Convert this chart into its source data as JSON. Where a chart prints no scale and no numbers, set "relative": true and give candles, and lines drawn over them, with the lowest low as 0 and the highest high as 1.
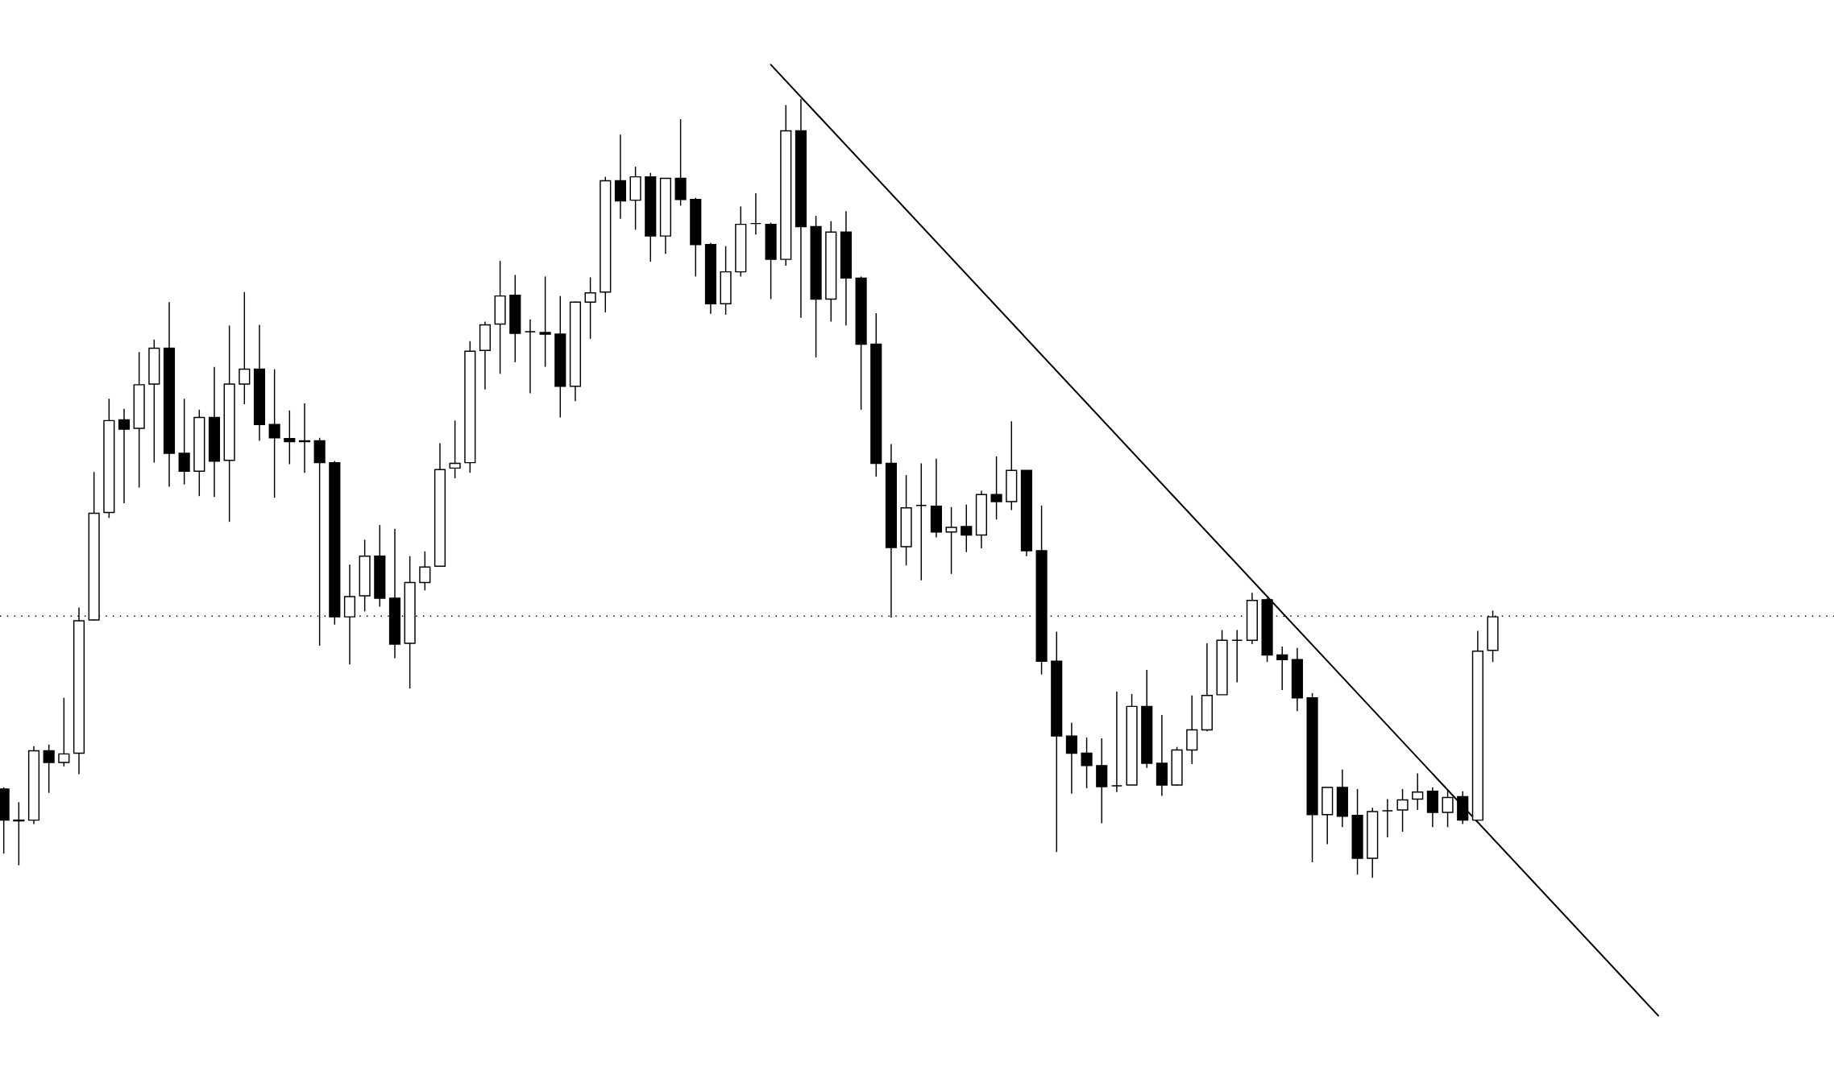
{
  "chart_data": {
    "type": "candlestick",
    "relative": true,
    "tick_labels": false,
    "categories": [
      null,
      null,
      null,
      null,
      null,
      null,
      null,
      null,
      null,
      null,
      null,
      null,
      null,
      null,
      null,
      null,
      null,
      null,
      null,
      null,
      null,
      null,
      null,
      null,
      null,
      null,
      null,
      null,
      null,
      null,
      null,
      null,
      null,
      null,
      null,
      null,
      null,
      null,
      null,
      null,
      null,
      null,
      null,
      null,
      null,
      null,
      null,
      null,
      null,
      null,
      null,
      null,
      null,
      null,
      null,
      null,
      null,
      null,
      null,
      null,
      null,
      null,
      null,
      null,
      null,
      null,
      null,
      null,
      null,
      null,
      null,
      null,
      null,
      null,
      null,
      null,
      null,
      null,
      null,
      null,
      null,
      null,
      null,
      null,
      null,
      null,
      null,
      null,
      null,
      null,
      null,
      null,
      null,
      null,
      null,
      null,
      null,
      null,
      null,
      null,
      null,
      null,
      null,
      null,
      null,
      null,
      null,
      null,
      null,
      null,
      null
    ],
    "ohlc": [
      [
        0.114,
        0.116,
        0.031,
        0.074
      ],
      [
        0.073,
        0.097,
        0.016,
        0.074
      ],
      [
        0.074,
        0.169,
        0.069,
        0.163
      ],
      [
        0.163,
        0.171,
        0.109,
        0.148
      ],
      [
        0.148,
        0.231,
        0.143,
        0.159
      ],
      [
        0.16,
        0.347,
        0.133,
        0.33
      ],
      [
        0.331,
        0.521,
        0.33,
        0.468
      ],
      [
        0.469,
        0.615,
        0.462,
        0.587
      ],
      [
        0.588,
        0.602,
        0.481,
        0.576
      ],
      [
        0.577,
        0.675,
        0.501,
        0.633
      ],
      [
        0.634,
        0.691,
        0.533,
        0.68
      ],
      [
        0.68,
        0.739,
        0.502,
        0.545
      ],
      [
        0.545,
        0.615,
        0.505,
        0.522
      ],
      [
        0.522,
        0.601,
        0.49,
        0.591
      ],
      [
        0.591,
        0.656,
        0.489,
        0.535
      ],
      [
        0.536,
        0.709,
        0.457,
        0.634
      ],
      [
        0.634,
        0.752,
        0.608,
        0.653
      ],
      [
        0.653,
        0.71,
        0.561,
        0.582
      ],
      [
        0.582,
        0.653,
        0.488,
        0.565
      ],
      [
        0.564,
        0.6,
        0.531,
        0.56
      ],
      [
        0.561,
        0.609,
        0.52,
        0.56
      ],
      [
        0.561,
        0.565,
        0.298,
        0.533
      ],
      [
        0.533,
        0.535,
        0.325,
        0.335
      ],
      [
        0.335,
        0.402,
        0.274,
        0.361
      ],
      [
        0.362,
        0.434,
        0.342,
        0.413
      ],
      [
        0.413,
        0.453,
        0.348,
        0.359
      ],
      [
        0.359,
        0.448,
        0.282,
        0.3
      ],
      [
        0.301,
        0.413,
        0.243,
        0.379
      ],
      [
        0.379,
        0.419,
        0.369,
        0.399
      ],
      [
        0.4,
        0.558,
        0.4,
        0.524
      ],
      [
        0.526,
        0.587,
        0.513,
        0.532
      ],
      [
        0.533,
        0.689,
        0.52,
        0.676
      ],
      [
        0.677,
        0.714,
        0.627,
        0.71
      ],
      [
        0.711,
        0.792,
        0.647,
        0.747
      ],
      [
        0.748,
        0.774,
        0.662,
        0.699
      ],
      [
        0.701,
        0.717,
        0.622,
        0.701
      ],
      [
        0.7,
        0.772,
        0.656,
        0.698
      ],
      [
        0.698,
        0.747,
        0.591,
        0.631
      ],
      [
        0.631,
        0.74,
        0.612,
        0.739
      ],
      [
        0.739,
        0.771,
        0.692,
        0.751
      ],
      [
        0.752,
        0.9,
        0.726,
        0.895
      ],
      [
        0.895,
        0.954,
        0.846,
        0.869
      ],
      [
        0.87,
        0.913,
        0.832,
        0.9
      ],
      [
        0.9,
        0.905,
        0.791,
        0.824
      ],
      [
        0.824,
        0.898,
        0.801,
        0.898
      ],
      [
        0.898,
        0.974,
        0.863,
        0.871
      ],
      [
        0.871,
        0.873,
        0.772,
        0.813
      ],
      [
        0.813,
        0.815,
        0.724,
        0.737
      ],
      [
        0.737,
        0.811,
        0.723,
        0.778
      ],
      [
        0.778,
        0.862,
        0.772,
        0.839
      ],
      [
        0.84,
        0.879,
        0.826,
        0.84
      ],
      [
        0.839,
        0.841,
        0.743,
        0.794
      ],
      [
        0.794,
        0.992,
        0.786,
        0.959
      ],
      [
        0.959,
        1.0,
        0.719,
        0.836
      ],
      [
        0.836,
        0.85,
        0.668,
        0.743
      ],
      [
        0.743,
        0.843,
        0.714,
        0.829
      ],
      [
        0.829,
        0.856,
        0.709,
        0.77
      ],
      [
        0.77,
        0.772,
        0.601,
        0.685
      ],
      [
        0.685,
        0.725,
        0.515,
        0.532
      ],
      [
        0.532,
        0.557,
        0.334,
        0.424
      ],
      [
        0.425,
        0.517,
        0.401,
        0.475
      ],
      [
        0.478,
        0.532,
        0.382,
        0.478
      ],
      [
        0.477,
        0.538,
        0.437,
        0.444
      ],
      [
        0.444,
        0.476,
        0.39,
        0.45
      ],
      [
        0.451,
        0.479,
        0.418,
        0.44
      ],
      [
        0.44,
        0.497,
        0.423,
        0.492
      ],
      [
        0.492,
        0.541,
        0.46,
        0.483
      ],
      [
        0.483,
        0.586,
        0.472,
        0.523
      ],
      [
        0.523,
        0.523,
        0.413,
        0.42
      ],
      [
        0.42,
        0.478,
        0.261,
        0.278
      ],
      [
        0.278,
        0.316,
        0.033,
        0.182
      ],
      [
        0.182,
        0.199,
        0.108,
        0.16
      ],
      [
        0.16,
        0.18,
        0.115,
        0.144
      ],
      [
        0.144,
        0.179,
        0.07,
        0.117
      ],
      [
        0.118,
        0.239,
        0.11,
        0.118
      ],
      [
        0.119,
        0.236,
        0.119,
        0.22
      ],
      [
        0.22,
        0.267,
        0.141,
        0.147
      ],
      [
        0.147,
        0.209,
        0.105,
        0.119
      ],
      [
        0.119,
        0.168,
        0.118,
        0.164
      ],
      [
        0.164,
        0.234,
        0.146,
        0.19
      ],
      [
        0.19,
        0.301,
        0.188,
        0.234
      ],
      [
        0.235,
        0.318,
        0.235,
        0.305
      ],
      [
        0.305,
        0.318,
        0.251,
        0.305
      ],
      [
        0.305,
        0.366,
        0.3,
        0.356
      ],
      [
        0.357,
        0.359,
        0.277,
        0.286
      ],
      [
        0.286,
        0.297,
        0.241,
        0.28
      ],
      [
        0.28,
        0.295,
        0.214,
        0.231
      ],
      [
        0.231,
        0.237,
        0.02,
        0.081
      ],
      [
        0.081,
        0.116,
        0.043,
        0.116
      ],
      [
        0.116,
        0.139,
        0.065,
        0.079
      ],
      [
        0.08,
        0.114,
        0.004,
        0.025
      ],
      [
        0.025,
        0.09,
        0.0,
        0.085
      ],
      [
        0.086,
        0.101,
        0.052,
        0.086
      ],
      [
        0.087,
        0.114,
        0.059,
        0.1
      ],
      [
        0.101,
        0.134,
        0.087,
        0.11
      ],
      [
        0.111,
        0.116,
        0.065,
        0.084
      ],
      [
        0.084,
        0.112,
        0.065,
        0.103
      ],
      [
        0.104,
        0.111,
        0.069,
        0.074
      ],
      [
        0.074,
        0.317,
        0.074,
        0.291
      ],
      [
        0.292,
        0.343,
        0.277,
        0.335
      ],
      null,
      null,
      null,
      null,
      null,
      null,
      null,
      null,
      null,
      null,
      null
    ],
    "colors": [
      "#000000",
      "#ffffff",
      "#ffffff",
      "#000000",
      "#ffffff",
      "#ffffff",
      "#ffffff",
      "#ffffff",
      "#000000",
      "#ffffff",
      "#ffffff",
      "#000000",
      "#000000",
      "#ffffff",
      "#000000",
      "#ffffff",
      "#ffffff",
      "#000000",
      "#000000",
      "#000000",
      "#000000",
      "#000000",
      "#000000",
      "#ffffff",
      "#ffffff",
      "#000000",
      "#000000",
      "#ffffff",
      "#ffffff",
      "#ffffff",
      "#ffffff",
      "#ffffff",
      "#ffffff",
      "#ffffff",
      "#000000",
      "#000000",
      "#000000",
      "#000000",
      "#ffffff",
      "#ffffff",
      "#ffffff",
      "#000000",
      "#ffffff",
      "#000000",
      "#ffffff",
      "#000000",
      "#000000",
      "#000000",
      "#ffffff",
      "#ffffff",
      "#000000",
      "#000000",
      "#ffffff",
      "#000000",
      "#000000",
      "#ffffff",
      "#000000",
      "#000000",
      "#000000",
      "#000000",
      "#ffffff",
      "#000000",
      "#000000",
      "#ffffff",
      "#000000",
      "#ffffff",
      "#000000",
      "#ffffff",
      "#000000",
      "#000000",
      "#000000",
      "#000000",
      "#000000",
      "#000000",
      "#000000",
      "#ffffff",
      "#000000",
      "#000000",
      "#ffffff",
      "#ffffff",
      "#ffffff",
      "#ffffff",
      "#000000",
      "#ffffff",
      "#000000",
      "#000000",
      "#000000",
      "#000000",
      "#ffffff",
      "#000000",
      "#000000",
      "#ffffff",
      "#000000",
      "#ffffff",
      "#ffffff",
      "#000000",
      "#ffffff",
      "#000000",
      "#ffffff",
      "#ffffff",
      null,
      null,
      null,
      null,
      null,
      null,
      null,
      null,
      null,
      null,
      null
    ],
    "series": [
      {
        "type": "line",
        "color": "#000000",
        "values": [
          null,
          null,
          null,
          null,
          null,
          null,
          null,
          null,
          null,
          null,
          null,
          null,
          null,
          null,
          null,
          null,
          null,
          null,
          null,
          null,
          null,
          null,
          null,
          null,
          null,
          null,
          null,
          null,
          null,
          null,
          null,
          null,
          null,
          null,
          null,
          null,
          null,
          null,
          null,
          null,
          null,
          null,
          null,
          null,
          null,
          null,
          null,
          null,
          null,
          null,
          null,
          1.044,
          null,
          null,
          null,
          null,
          null,
          null,
          null,
          null,
          null,
          null,
          null,
          null,
          null,
          null,
          null,
          null,
          null,
          null,
          null,
          null,
          null,
          null,
          null,
          null,
          null,
          null,
          null,
          null,
          null,
          null,
          null,
          null,
          null,
          null,
          null,
          null,
          null,
          null,
          null,
          null,
          null,
          null,
          null,
          null,
          null,
          null,
          null,
          null,
          null,
          null,
          null,
          null,
          null,
          null,
          null,
          null,
          null,
          null,
          -0.177
        ]
      }
    ],
    "ref_lines": [
      {
        "axis": "y",
        "value": 0.336,
        "line_style": "dotted",
        "color": "#000000"
      }
    ]
  }
}
